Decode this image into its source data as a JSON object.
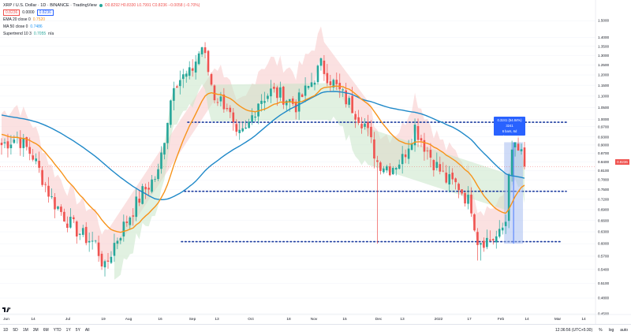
{
  "header": {
    "symbol_title": "XRP / U.S. Dollar · 1D · BINANCE · TradingView",
    "ohlc": "O0.8292 H0.8330 L0.7991 C0.8236 −0.0058 (−0.70%)",
    "bid_box": "0.8236",
    "spread": "0.0000",
    "ask_box": "0.8236"
  },
  "indicators": [
    {
      "name": "EMA 20 close 0",
      "value": "0.7520",
      "color": "#f7931a"
    },
    {
      "name": "MA 50 close 0",
      "value": "0.7486",
      "color": "#2196f3"
    },
    {
      "name": "Supertrend 10 3",
      "value": "0.7055",
      "extra": "n/a",
      "color": "#26a69a"
    }
  ],
  "colors": {
    "up": "#26a69a",
    "down": "#ef5350",
    "ema": "#f7931a",
    "ma": "#1e88c8",
    "supertrend_down_fill": "#f8c9c9",
    "supertrend_up_fill": "#c8e6c9",
    "dotted_lines": "#1a3a9f",
    "measure_fill": "#9fb7f0"
  },
  "price_scale": {
    "ticks": [
      "1.5000",
      "1.4000",
      "1.3500",
      "1.3000",
      "1.2500",
      "1.2000",
      "1.1500",
      "1.1000",
      "1.0500",
      "1.0000",
      "0.9700",
      "0.9300",
      "0.9000",
      "0.8700",
      "0.8400",
      "0.8100",
      "0.7800",
      "0.7500",
      "0.7200",
      "0.6900",
      "0.6600",
      "0.6300",
      "0.6000",
      "0.5700",
      "0.5400",
      "0.5100",
      "0.4800",
      "0.4500"
    ],
    "current_price": "0.8236"
  },
  "time_scale": {
    "labels": [
      "Jun",
      "14",
      "Jul",
      "19",
      "Aug",
      "16",
      "Sep",
      "13",
      "Oct",
      "18",
      "Nov",
      "15",
      "Dec",
      "13",
      "2022",
      "17",
      "Feb",
      "14",
      "Mar",
      "14"
    ]
  },
  "measure_tool": {
    "line1": "0.3241 (54.84%) 3241",
    "line2": "6 bars, 6d",
    "line3": "Vol 325.433M"
  },
  "bottom_bar": {
    "ranges": [
      "1D",
      "5D",
      "1M",
      "3M",
      "6M",
      "YTD",
      "1Y",
      "5Y",
      "All"
    ],
    "time": "12:36:56 (UTC+5:30)",
    "percent": "%",
    "log": "log",
    "auto": "auto"
  },
  "chart_data": {
    "type": "candlestick",
    "instrument": "XRP / U.S. Dollar",
    "timeframe": "1D",
    "exchange": "BINANCE",
    "y_scale": "log",
    "ylim": [
      0.45,
      1.55
    ],
    "anchors": [
      {
        "x": 0,
        "c": 0.9
      },
      {
        "x": 5,
        "c": 0.93
      },
      {
        "x": 10,
        "c": 0.86
      },
      {
        "x": 16,
        "c": 0.72
      },
      {
        "x": 22,
        "c": 0.65
      },
      {
        "x": 26,
        "c": 0.62
      },
      {
        "x": 30,
        "c": 0.6
      },
      {
        "x": 33,
        "c": 0.54
      },
      {
        "x": 36,
        "c": 0.6
      },
      {
        "x": 40,
        "c": 0.66
      },
      {
        "x": 45,
        "c": 0.74
      },
      {
        "x": 50,
        "c": 0.8
      },
      {
        "x": 55,
        "c": 1.17
      },
      {
        "x": 60,
        "c": 1.2
      },
      {
        "x": 64,
        "c": 1.35
      },
      {
        "x": 68,
        "c": 1.1
      },
      {
        "x": 72,
        "c": 1.06
      },
      {
        "x": 75,
        "c": 0.92
      },
      {
        "x": 78,
        "c": 0.95
      },
      {
        "x": 82,
        "c": 1.08
      },
      {
        "x": 86,
        "c": 1.12
      },
      {
        "x": 90,
        "c": 1.1
      },
      {
        "x": 94,
        "c": 1.06
      },
      {
        "x": 98,
        "c": 1.14
      },
      {
        "x": 102,
        "c": 1.25
      },
      {
        "x": 104,
        "c": 1.2
      },
      {
        "x": 108,
        "c": 1.12
      },
      {
        "x": 112,
        "c": 1.05
      },
      {
        "x": 116,
        "c": 0.98
      },
      {
        "x": 120,
        "c": 0.84
      },
      {
        "x": 124,
        "c": 0.82
      },
      {
        "x": 128,
        "c": 0.85
      },
      {
        "x": 132,
        "c": 0.97
      },
      {
        "x": 135,
        "c": 0.9
      },
      {
        "x": 138,
        "c": 0.84
      },
      {
        "x": 142,
        "c": 0.78
      },
      {
        "x": 146,
        "c": 0.76
      },
      {
        "x": 150,
        "c": 0.7
      },
      {
        "x": 152,
        "c": 0.61
      },
      {
        "x": 156,
        "c": 0.61
      },
      {
        "x": 159,
        "c": 0.62
      },
      {
        "x": 161,
        "c": 0.66
      },
      {
        "x": 162,
        "c": 0.82
      },
      {
        "x": 164,
        "c": 0.9
      },
      {
        "x": 166,
        "c": 0.86
      },
      {
        "x": 167,
        "c": 0.8236
      }
    ],
    "horizontal_lines": [
      0.988,
      0.744,
      0.605
    ]
  }
}
